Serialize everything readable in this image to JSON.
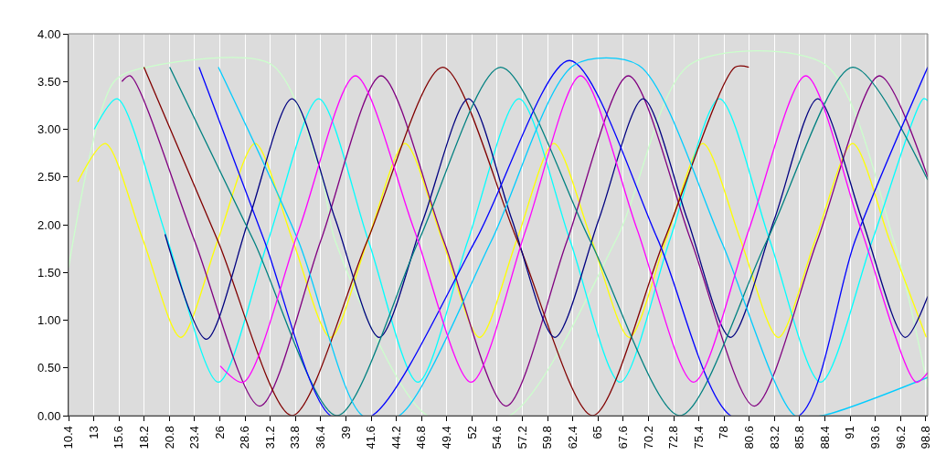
{
  "chart_data": {
    "type": "line",
    "grid": "x",
    "legend": false,
    "marker": "none",
    "line_style": "solid",
    "xlim": [
      10.4,
      99.0
    ],
    "xticks": [
      10.4,
      13,
      15.6,
      18.2,
      20.8,
      23.4,
      26,
      28.6,
      31.2,
      33.8,
      36.4,
      39,
      41.6,
      44.2,
      46.8,
      49.4,
      52,
      54.6,
      57.2,
      59.8,
      62.4,
      65,
      67.6,
      70.2,
      72.8,
      75.4,
      78,
      80.6,
      83.2,
      85.8,
      88.4,
      91,
      93.6,
      96.2,
      98.8
    ],
    "ylim": [
      0,
      4
    ],
    "yticks": [
      {
        "value": 0,
        "label": "0.00"
      },
      {
        "value": 0.5,
        "label": "0.50"
      },
      {
        "value": 1,
        "label": "1.00"
      },
      {
        "value": 1.5,
        "label": "1.50"
      },
      {
        "value": 2,
        "label": "2.00"
      },
      {
        "value": 2.5,
        "label": "2.50"
      },
      {
        "value": 3,
        "label": "3.00"
      },
      {
        "value": 3.5,
        "label": "3.50"
      },
      {
        "value": 4,
        "label": "4.00"
      }
    ],
    "series": [
      {
        "color": "#ccffcc",
        "x": [
          10.4,
          15.1,
          18.5,
          31.3,
          36.5,
          37.9,
          47.4,
          55.9,
          67.0,
          74.5,
          88.4,
          95.5,
          99.0
        ],
        "values": [
          1.55,
          3.5,
          3.65,
          3.68,
          2.5,
          1.83,
          0.0,
          0.0,
          1.87,
          3.68,
          3.68,
          1.83,
          0.3
        ]
      },
      {
        "color": "#ffff00",
        "x": [
          11.35,
          14.19,
          18.08,
          21.97,
          25.8,
          29.64,
          33.5,
          37.42,
          41.26,
          45.1,
          48.94,
          52.78,
          56.62,
          60.45,
          64.34,
          68.23,
          72.0,
          75.81,
          79.7,
          83.59,
          87.4,
          91.26,
          95.06,
          98.85
        ],
        "values": [
          2.45,
          2.85,
          1.84,
          0.82,
          1.84,
          2.85,
          1.84,
          0.82,
          1.84,
          2.85,
          1.84,
          0.82,
          1.84,
          2.85,
          1.84,
          0.82,
          1.84,
          2.85,
          1.84,
          0.82,
          1.84,
          2.85,
          1.84,
          0.82
        ]
      },
      {
        "color": "#00ffff",
        "x": [
          13.05,
          15.42,
          20.6,
          25.85,
          31.0,
          36.19,
          41.3,
          46.42,
          51.6,
          56.85,
          62.1,
          67.28,
          72.4,
          77.52,
          82.7,
          87.95,
          93.3,
          98.56,
          99.0
        ],
        "values": [
          3.0,
          3.32,
          1.84,
          0.35,
          1.84,
          3.32,
          1.84,
          0.35,
          1.84,
          3.32,
          1.84,
          0.35,
          1.84,
          3.32,
          1.84,
          0.35,
          1.84,
          3.32,
          3.3
        ]
      },
      {
        "color": "#800080",
        "x": [
          15.9,
          16.75,
          23.4,
          30.12,
          36.4,
          42.63,
          49.1,
          55.53,
          61.8,
          68.13,
          74.6,
          81.12,
          87.6,
          94.01,
          99.0
        ],
        "values": [
          3.5,
          3.56,
          1.83,
          0.1,
          1.83,
          3.56,
          1.83,
          0.1,
          1.83,
          3.56,
          1.83,
          0.1,
          1.83,
          3.56,
          2.5
        ]
      },
      {
        "color": "#800000",
        "x": [
          18.17,
          25.8,
          33.44,
          41.2,
          48.98,
          56.7,
          64.44,
          71.8,
          79.13,
          80.55
        ],
        "values": [
          3.65,
          1.83,
          0.0,
          1.83,
          3.65,
          1.83,
          0.0,
          1.83,
          3.65,
          3.65
        ]
      },
      {
        "color": "#000080",
        "x": [
          20.35,
          24.62,
          29.0,
          33.44,
          37.9,
          42.44,
          47.0,
          51.64,
          56.1,
          60.55,
          65.1,
          69.65,
          74.2,
          78.66,
          83.2,
          87.66,
          92.2,
          96.67,
          99.0
        ],
        "values": [
          1.9,
          0.8,
          2.06,
          3.32,
          2.06,
          0.82,
          2.06,
          3.32,
          2.06,
          0.82,
          2.06,
          3.32,
          2.06,
          0.82,
          2.06,
          3.32,
          2.06,
          0.82,
          1.25
        ]
      },
      {
        "color": "#008080",
        "x": [
          20.83,
          29.5,
          38.08,
          46.5,
          54.96,
          64.2,
          73.44,
          82.4,
          91.26,
          99.0
        ],
        "values": [
          3.65,
          1.83,
          0.0,
          1.83,
          3.65,
          1.83,
          0.0,
          1.83,
          3.65,
          2.47
        ]
      },
      {
        "color": "#0000ff",
        "x": [
          23.86,
          30.6,
          37.4,
          41.7,
          52.5,
          62.07,
          71.1,
          78.66,
          85.77,
          91.5,
          99.0
        ],
        "values": [
          3.65,
          1.83,
          0.0,
          0.0,
          1.86,
          3.72,
          1.86,
          0.0,
          0.0,
          1.83,
          3.65
        ]
      },
      {
        "color": "#00ccff",
        "x": [
          25.85,
          34.1,
          40.7,
          44.5,
          54.0,
          62.5,
          69.2,
          77.7,
          85.3,
          88.1,
          99.0
        ],
        "values": [
          3.65,
          1.83,
          0.0,
          0.0,
          1.83,
          3.67,
          3.67,
          1.83,
          0.0,
          0.0,
          0.4
        ]
      },
      {
        "color": "#ff00ff",
        "x": [
          26.04,
          28.41,
          34.2,
          39.98,
          46.0,
          51.92,
          57.6,
          63.2,
          69.0,
          74.86,
          80.6,
          86.43,
          92.1,
          97.81,
          99.0
        ],
        "values": [
          0.52,
          0.35,
          1.96,
          3.56,
          1.96,
          0.35,
          1.96,
          3.56,
          1.96,
          0.35,
          1.96,
          3.56,
          1.96,
          0.35,
          0.45
        ]
      }
    ]
  }
}
